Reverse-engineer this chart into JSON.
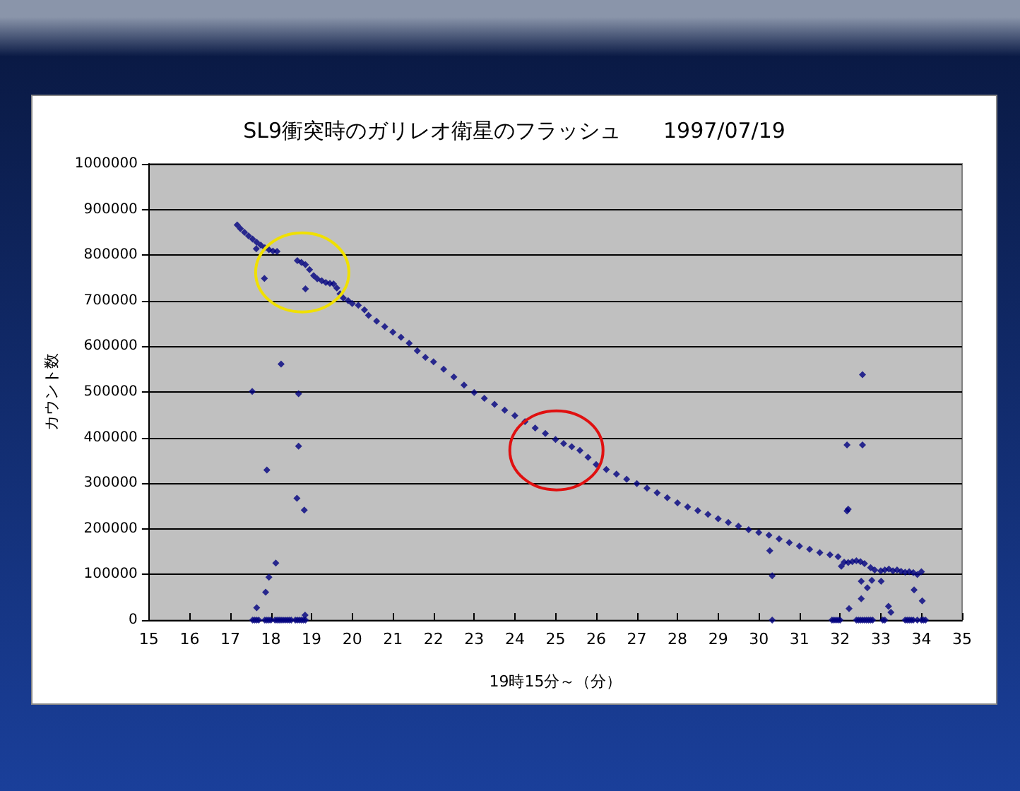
{
  "chart_data": {
    "type": "scatter",
    "title": "SL9衝突時のガリレオ衛星のフラッシュ　　1997/07/19",
    "xlabel": "19時15分～（分）",
    "ylabel": "カウント数",
    "x": [
      17.17,
      17.25,
      17.35,
      17.45,
      17.55,
      17.65,
      17.75,
      17.85,
      17.95,
      18.05,
      18.15,
      18.65,
      18.75,
      18.85,
      18.95,
      19.05,
      19.14,
      19.25,
      19.35,
      19.45,
      19.54,
      19.62,
      19.7,
      19.78,
      19.9,
      20.0,
      20.15,
      20.3,
      20.4,
      20.6,
      20.8,
      21.0,
      21.2,
      21.4,
      21.6,
      21.8,
      22.0,
      22.25,
      22.5,
      22.75,
      23.0,
      23.25,
      23.5,
      23.75,
      24.0,
      24.25,
      24.5,
      24.75,
      25.0,
      25.2,
      25.4,
      25.6,
      25.8,
      26.0,
      26.25,
      26.5,
      26.75,
      27.0,
      27.25,
      27.5,
      27.75,
      28.0,
      28.25,
      28.5,
      28.75,
      29.0,
      29.25,
      29.5,
      29.75,
      30.0,
      30.25,
      30.5,
      30.75,
      31.0,
      31.25,
      31.5,
      31.75,
      31.95,
      32.1,
      32.2,
      32.3,
      32.4,
      32.5,
      32.6,
      32.75,
      32.85,
      33.0,
      33.1,
      33.2,
      33.3,
      33.4,
      33.5,
      33.6,
      33.7,
      33.8,
      33.9,
      34.0,
      17.64,
      17.84,
      18.25,
      17.54,
      18.68,
      18.68,
      17.9,
      18.64,
      18.82,
      18.12,
      17.95,
      17.87,
      17.65,
      18.84,
      18.85,
      32.55,
      32.17,
      32.55,
      32.17,
      32.2,
      30.27,
      30.33,
      32.03,
      32.52,
      32.67,
      32.78,
      33.01,
      32.52,
      32.22,
      33.19,
      33.25,
      33.82,
      34.02,
      17.55,
      17.6,
      17.65,
      17.7,
      17.85,
      17.9,
      17.95,
      18.0,
      18.1,
      18.15,
      18.2,
      18.25,
      18.3,
      18.35,
      18.4,
      18.45,
      18.5,
      18.6,
      18.65,
      18.7,
      18.75,
      18.8,
      18.85,
      30.33,
      31.8,
      31.85,
      31.9,
      31.95,
      32.0,
      32.4,
      32.45,
      32.5,
      32.55,
      32.6,
      32.65,
      32.7,
      32.75,
      32.8,
      33.05,
      33.1,
      33.6,
      33.65,
      33.7,
      33.75,
      33.8,
      33.9,
      34.0,
      34.05,
      34.1
    ],
    "values": [
      866000,
      858000,
      850000,
      842000,
      835000,
      828000,
      822000,
      816000,
      812000,
      809000,
      808000,
      788000,
      784000,
      779000,
      768000,
      755000,
      748000,
      744000,
      740000,
      738000,
      737000,
      728000,
      715000,
      706000,
      700000,
      694000,
      690000,
      680000,
      668000,
      655000,
      643000,
      631000,
      620000,
      607000,
      590000,
      576000,
      566000,
      550000,
      533000,
      515000,
      499000,
      486000,
      473000,
      460000,
      448000,
      435000,
      421000,
      409000,
      396000,
      387000,
      380000,
      372000,
      357000,
      341000,
      330000,
      320000,
      309000,
      299000,
      289000,
      279000,
      268000,
      257000,
      248000,
      240000,
      232000,
      222000,
      214000,
      206000,
      198000,
      192000,
      186000,
      178000,
      170000,
      162000,
      155000,
      148000,
      143000,
      139000,
      127000,
      126000,
      128000,
      130000,
      128000,
      124000,
      115000,
      110000,
      108000,
      110000,
      112000,
      108000,
      110000,
      107000,
      105000,
      106000,
      104000,
      100000,
      106000,
      814000,
      749000,
      561000,
      501000,
      496000,
      381000,
      329000,
      267000,
      241000,
      125000,
      94000,
      61000,
      27000,
      11000,
      726000,
      538000,
      384000,
      384000,
      239000,
      243000,
      152000,
      97000,
      118000,
      85000,
      71000,
      87000,
      85000,
      47000,
      25000,
      30000,
      17000,
      66000,
      42000,
      0,
      0,
      0,
      0,
      0,
      0,
      0,
      0,
      0,
      0,
      0,
      0,
      0,
      0,
      0,
      0,
      0,
      0,
      0,
      0,
      0,
      0,
      0,
      0,
      0,
      0,
      0,
      0,
      0,
      0,
      0,
      0,
      0,
      0,
      0,
      0,
      0,
      0,
      0,
      0,
      0,
      0,
      0,
      0,
      0,
      0,
      0,
      0,
      0
    ],
    "color": "#000080",
    "marker": "diamond",
    "xlim": [
      15,
      35
    ],
    "xticks": [
      15,
      16,
      17,
      18,
      19,
      20,
      21,
      22,
      23,
      24,
      25,
      26,
      27,
      28,
      29,
      30,
      31,
      32,
      33,
      34,
      35
    ],
    "ylim": [
      0,
      1000000
    ],
    "yticks": [
      0,
      100000,
      200000,
      300000,
      400000,
      500000,
      600000,
      700000,
      800000,
      900000,
      1000000
    ],
    "grid": "y"
  }
}
